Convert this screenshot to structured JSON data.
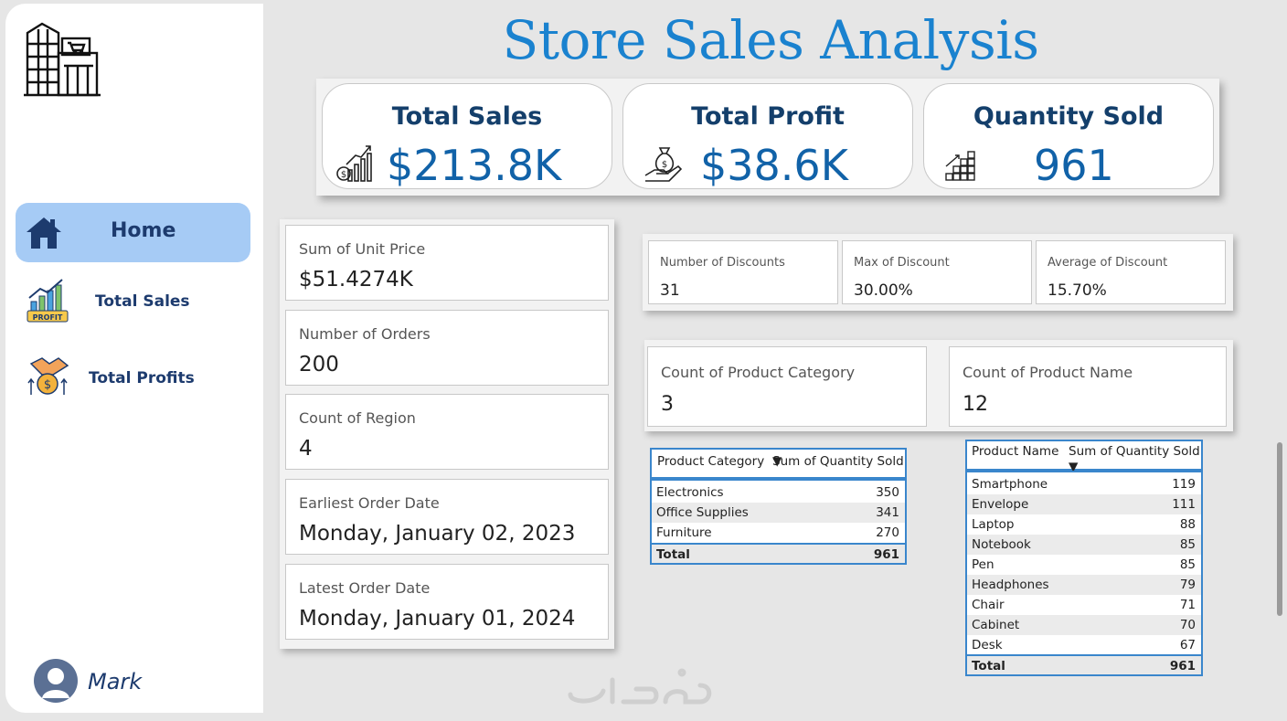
{
  "page": {
    "title": "Store Sales Analysis"
  },
  "sidebar": {
    "items": [
      {
        "label": "Home",
        "icon": "house-icon",
        "active": true
      },
      {
        "label": "Total Sales",
        "icon": "profit-chart-icon"
      },
      {
        "label": "Total Profits",
        "icon": "handshake-coin-icon"
      }
    ],
    "user": {
      "name": "Mark"
    }
  },
  "kpis": [
    {
      "title": "Total Sales",
      "value": "$213.8K",
      "icon": "sales-chart-icon"
    },
    {
      "title": "Total Profit",
      "value": "$38.6K",
      "icon": "money-bag-hand-icon"
    },
    {
      "title": "Quantity Sold",
      "value": "961",
      "icon": "stacked-boxes-icon"
    }
  ],
  "cards": [
    {
      "label": "Sum of Unit Price",
      "value": "$51.4274K"
    },
    {
      "label": "Number of Orders",
      "value": "200"
    },
    {
      "label": "Count of Region",
      "value": "4"
    },
    {
      "label": "Earliest Order Date",
      "value": "Monday, January 02, 2023"
    },
    {
      "label": "Latest Order Date",
      "value": "Monday, January 01, 2024"
    }
  ],
  "discounts": [
    {
      "label": "Number of Discounts",
      "value": "31"
    },
    {
      "label": "Max of Discount",
      "value": "30.00%"
    },
    {
      "label": "Average of Discount",
      "value": "15.70%"
    }
  ],
  "counts": [
    {
      "label": "Count of Product Category",
      "value": "3"
    },
    {
      "label": "Count of Product Name",
      "value": "12"
    }
  ],
  "category_table": {
    "headers": [
      "Product Category",
      "Sum of Quantity Sold"
    ],
    "rows": [
      {
        "name": "Electronics",
        "value": "350"
      },
      {
        "name": "Office Supplies",
        "value": "341"
      },
      {
        "name": "Furniture",
        "value": "270"
      }
    ],
    "total_label": "Total",
    "total_value": "961"
  },
  "product_table": {
    "headers": [
      "Product Name",
      "Sum of Quantity Sold"
    ],
    "rows": [
      {
        "name": "Smartphone",
        "value": "119"
      },
      {
        "name": "Envelope",
        "value": "111"
      },
      {
        "name": "Laptop",
        "value": "88"
      },
      {
        "name": "Notebook",
        "value": "85"
      },
      {
        "name": "Pen",
        "value": "85"
      },
      {
        "name": "Headphones",
        "value": "79"
      },
      {
        "name": "Chair",
        "value": "71"
      },
      {
        "name": "Cabinet",
        "value": "70"
      },
      {
        "name": "Desk",
        "value": "67"
      }
    ],
    "total_label": "Total",
    "total_value": "961"
  },
  "colors": {
    "title": "#1a82cf",
    "nav_active": "#a6cbf5",
    "kpi_value": "#1162a8",
    "table_border": "#3a86cc"
  }
}
